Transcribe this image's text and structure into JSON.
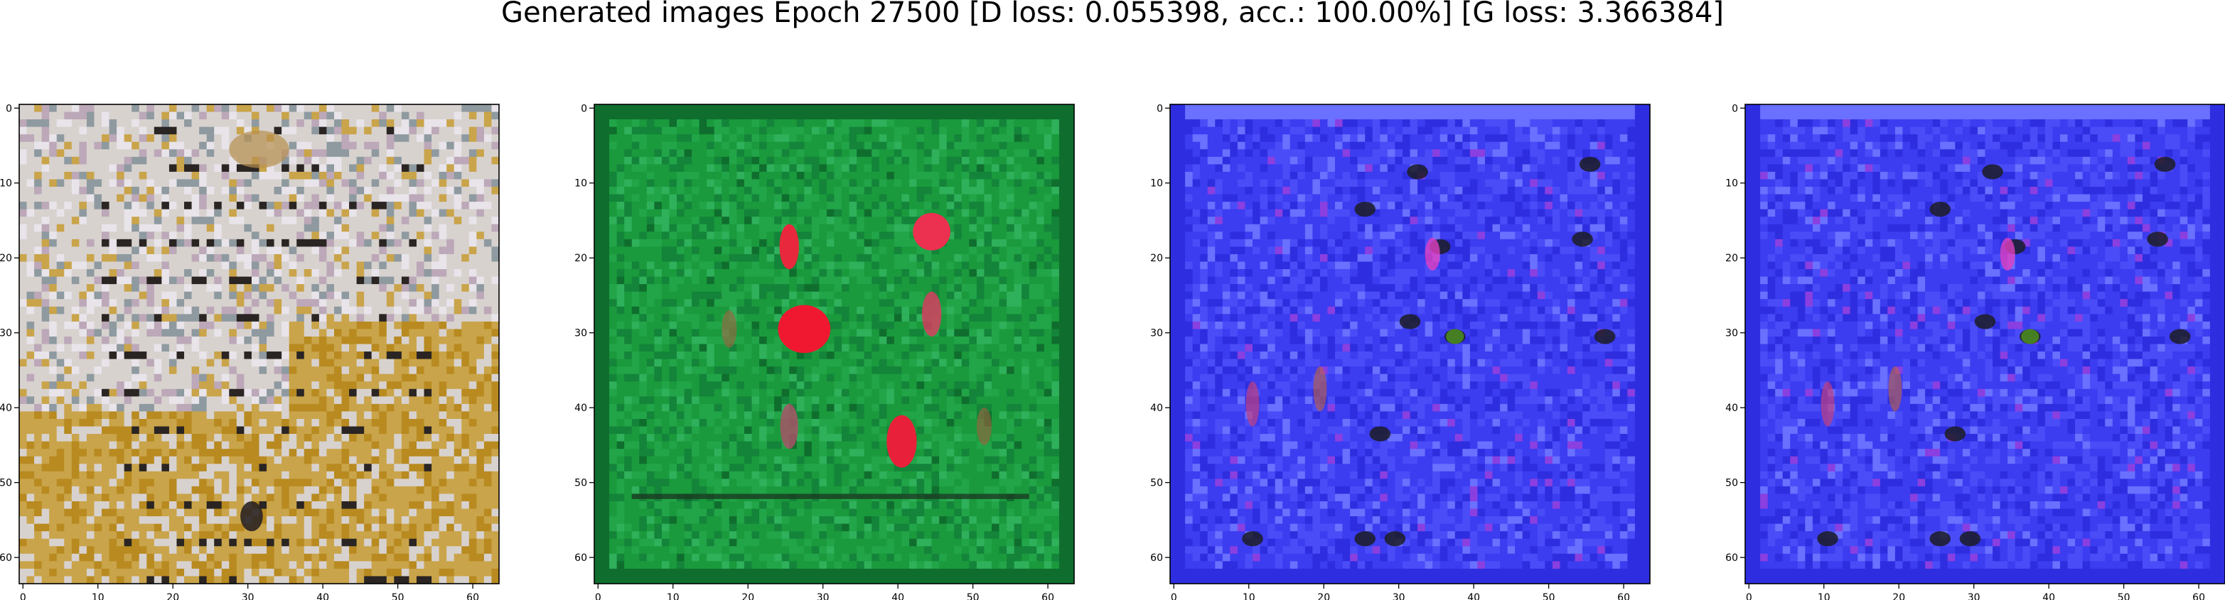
{
  "figure": {
    "title": "Generated images Epoch 27500 [D loss: 0.055398, acc.: 100.00%] [G loss: 3.366384]"
  },
  "chart_data": [
    {
      "type": "image",
      "image_description_color": "#c8a23a",
      "palette": [
        "#d8d2cf",
        "#c9a44a",
        "#b88a20",
        "#e8e4ea",
        "#2a2422",
        "#8e9aa0",
        "#bca8b8"
      ],
      "xlim": [
        0,
        63
      ],
      "ylim": [
        63,
        0
      ],
      "xticks": [
        "0",
        "10",
        "20",
        "30",
        "40",
        "50",
        "60"
      ],
      "yticks": [
        "0",
        "10",
        "20",
        "30",
        "40",
        "50",
        "60"
      ]
    },
    {
      "type": "image",
      "image_description_color": "#1f9a3e",
      "palette": [
        "#1a9a3c",
        "#14843a",
        "#22a548",
        "#0f6e2e",
        "#e8283c",
        "#f07a9a",
        "#2fb05a"
      ],
      "xlim": [
        0,
        63
      ],
      "ylim": [
        63,
        0
      ],
      "xticks": [
        "0",
        "10",
        "20",
        "30",
        "40",
        "50",
        "60"
      ],
      "yticks": [
        "0",
        "10",
        "20",
        "30",
        "40",
        "50",
        "60"
      ]
    },
    {
      "type": "image",
      "image_description_color": "#3b38f0",
      "palette": [
        "#3c3cf0",
        "#4a4cf8",
        "#2e2ee0",
        "#6a70ff",
        "#8a3fe0",
        "#e040c0",
        "#20202a"
      ],
      "xlim": [
        0,
        63
      ],
      "ylim": [
        63,
        0
      ],
      "xticks": [
        "0",
        "10",
        "20",
        "30",
        "40",
        "50",
        "60"
      ],
      "yticks": [
        "0",
        "10",
        "20",
        "30",
        "40",
        "50",
        "60"
      ]
    },
    {
      "type": "image",
      "image_description_color": "#3b38f0",
      "palette": [
        "#3c3cf0",
        "#4a4cf8",
        "#2e2ee0",
        "#6a70ff",
        "#8a3fe0",
        "#e040c0",
        "#20202a"
      ],
      "xlim": [
        0,
        63
      ],
      "ylim": [
        63,
        0
      ],
      "xticks": [
        "0",
        "10",
        "20",
        "30",
        "40",
        "50",
        "60"
      ],
      "yticks": [
        "0",
        "10",
        "20",
        "30",
        "40",
        "50",
        "60"
      ]
    }
  ]
}
